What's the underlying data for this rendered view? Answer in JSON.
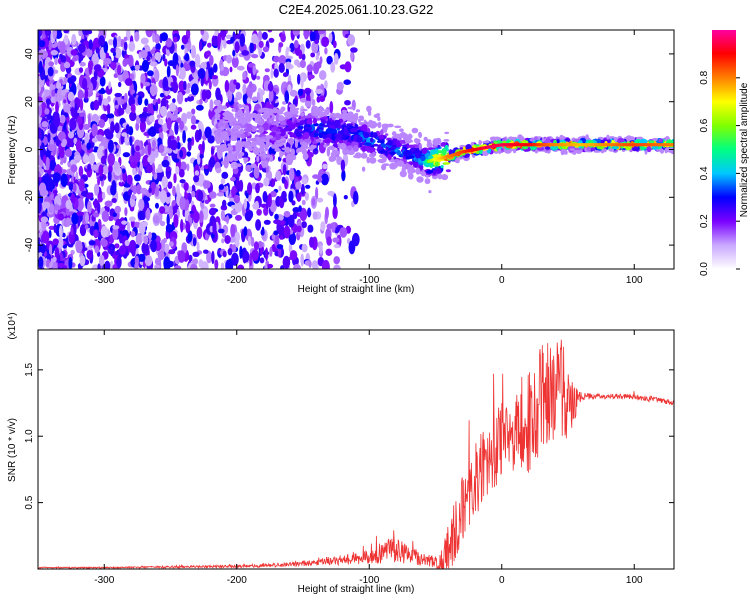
{
  "title": "C2E4.2025.061.10.23.G22",
  "chart_data": [
    {
      "type": "heatmap",
      "xlabel": "Height of straight line (km)",
      "ylabel": "Frequency (Hz)",
      "xlim": [
        -350,
        130
      ],
      "ylim": [
        -50,
        50
      ],
      "x_ticks": [
        -300,
        -200,
        -100,
        0,
        100
      ],
      "y_ticks": [
        -40,
        -20,
        0,
        20,
        40
      ],
      "grid": false,
      "colorbar": {
        "label": "Normalized spectral amplitude",
        "range": [
          0,
          1
        ],
        "ticks": [
          "0.0",
          "0.2",
          "0.4",
          "0.6",
          "0.8"
        ],
        "colors": [
          "#ffffff",
          "#c9a8ff",
          "#7a00ff",
          "#0000ff",
          "#00c8ff",
          "#00ff80",
          "#80ff00",
          "#ffff00",
          "#ff8000",
          "#ff0000",
          "#ff00a0"
        ]
      },
      "ridge": {
        "x": [
          -200,
          -170,
          -150,
          -130,
          -110,
          -100,
          -90,
          -80,
          -70,
          -60,
          -55,
          -50,
          -40,
          -30,
          -20,
          -10,
          0,
          20,
          40,
          60,
          80,
          100,
          130
        ],
        "freq": [
          8,
          8,
          9,
          8,
          6,
          4,
          2,
          0,
          -2,
          -4,
          -5,
          -4,
          -3,
          -1,
          0,
          1,
          2,
          2,
          2,
          2,
          2,
          2,
          2
        ],
        "amplitude": [
          0.15,
          0.2,
          0.3,
          0.35,
          0.35,
          0.35,
          0.35,
          0.35,
          0.3,
          0.4,
          0.6,
          0.7,
          0.8,
          0.85,
          0.9,
          0.95,
          0.95,
          0.9,
          0.8,
          0.75,
          0.8,
          0.85,
          0.8
        ]
      }
    },
    {
      "type": "line",
      "xlabel": "Height of straight line (km)",
      "ylabel": "SNR (10 * v/v)",
      "y_multiplier": "(x10⁴)",
      "xlim": [
        -350,
        130
      ],
      "ylim": [
        0,
        1.8
      ],
      "x_ticks": [
        -300,
        -200,
        -100,
        0,
        100
      ],
      "y_ticks": [
        0.5,
        1.0,
        1.5
      ],
      "y_tick_labels": [
        "0.5",
        "1.0",
        "1.5"
      ],
      "grid": false,
      "series": [
        {
          "color": "#ee3333",
          "x": [
            -350,
            -300,
            -250,
            -200,
            -170,
            -140,
            -120,
            -100,
            -90,
            -80,
            -70,
            -60,
            -50,
            -45,
            -40,
            -35,
            -30,
            -25,
            -20,
            -15,
            -10,
            -5,
            0,
            5,
            10,
            15,
            20,
            25,
            30,
            35,
            40,
            45,
            50,
            55,
            60,
            70,
            80,
            90,
            100,
            110,
            120,
            130
          ],
          "y": [
            0.01,
            0.01,
            0.015,
            0.02,
            0.03,
            0.05,
            0.07,
            0.1,
            0.12,
            0.15,
            0.1,
            0.08,
            0.05,
            0.06,
            0.15,
            0.3,
            0.45,
            0.55,
            0.65,
            0.75,
            0.85,
            0.9,
            0.95,
            1.0,
            1.05,
            1.1,
            1.1,
            1.15,
            1.2,
            1.3,
            1.35,
            1.35,
            1.3,
            1.25,
            1.3,
            1.3,
            1.3,
            1.3,
            1.3,
            1.28,
            1.27,
            1.25
          ],
          "noise": [
            0.005,
            0.005,
            0.008,
            0.01,
            0.015,
            0.025,
            0.04,
            0.06,
            0.08,
            0.1,
            0.07,
            0.05,
            0.04,
            0.1,
            0.2,
            0.25,
            0.25,
            0.28,
            0.3,
            0.3,
            0.3,
            0.3,
            0.3,
            0.3,
            0.35,
            0.35,
            0.4,
            0.45,
            0.5,
            0.45,
            0.4,
            0.4,
            0.35,
            0.15,
            0.03,
            0.02,
            0.02,
            0.02,
            0.02,
            0.02,
            0.02,
            0.02
          ]
        }
      ]
    }
  ]
}
